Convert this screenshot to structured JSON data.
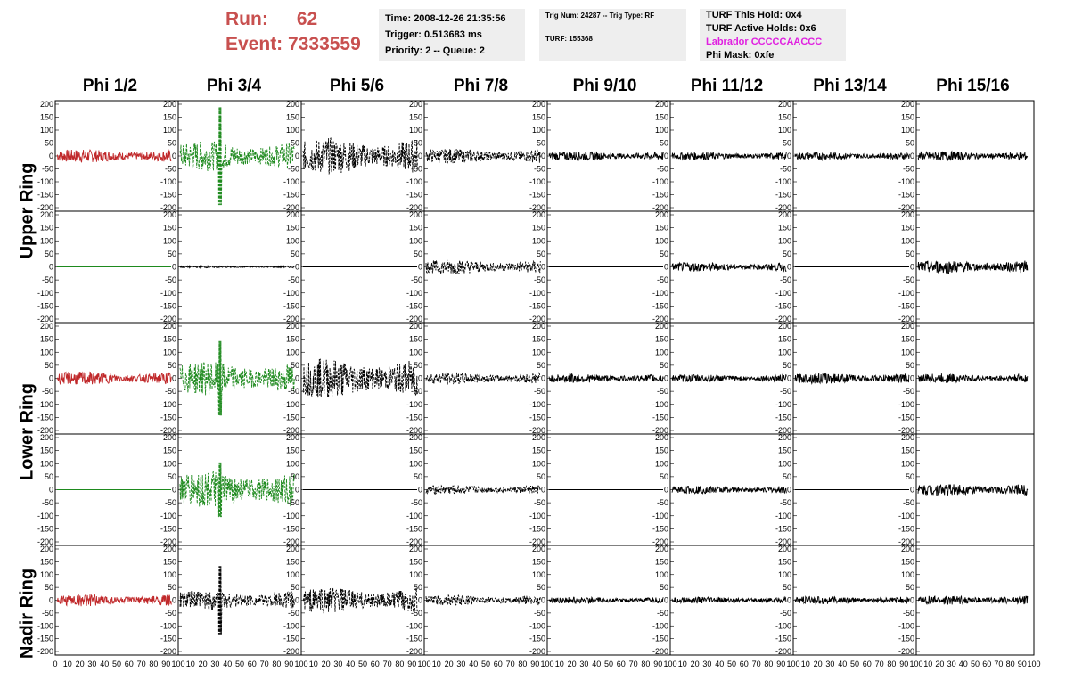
{
  "run_label": "Run:",
  "run_value": "62",
  "event_label": "Event:",
  "event_value": "7333559",
  "info1": {
    "time": "Time: 2008-12-26 21:35:56",
    "trigger": "Trigger: 0.513683 ms",
    "priority": "Priority: 2 -- Queue: 2"
  },
  "info2": {
    "trig": "Trig Num: 24287 -- Trig Type: RF",
    "turf": "TURF: 155368"
  },
  "info3": {
    "this_hold": "TURF This Hold: 0x4",
    "active_holds": "TURF Active Holds: 0x6",
    "labrador": "Labrador CCCCCAACCC",
    "phi_mask": "Phi Mask: 0xfe"
  },
  "columns": [
    "Phi 1/2",
    "Phi 3/4",
    "Phi 5/6",
    "Phi 7/8",
    "Phi 9/10",
    "Phi 11/12",
    "Phi 13/14",
    "Phi 15/16"
  ],
  "rows": [
    "Upper Ring",
    "Lower Ring",
    "Nadir Ring"
  ],
  "colors": {
    "red": "#c0282a",
    "green": "#1e8a1e",
    "black": "#000000",
    "run_text": "#c8504f",
    "labrador": "#e020e0"
  },
  "y_ticks": [
    "200",
    "150",
    "100",
    "50",
    "0",
    "-50",
    "-100",
    "-150",
    "-200"
  ],
  "x_ticks_first": [
    "0",
    "10",
    "20",
    "30",
    "40",
    "50",
    "60",
    "70",
    "80",
    "90",
    "100"
  ],
  "x_ticks": [
    "10",
    "20",
    "30",
    "40",
    "50",
    "60",
    "70",
    "80",
    "90",
    "100"
  ],
  "panels": [
    [
      {
        "color": "red",
        "amp": 20,
        "flat": false
      },
      {
        "color": "green",
        "amp": 45,
        "flat": false,
        "dash": true,
        "spike": 200
      },
      {
        "color": "black",
        "amp": 55,
        "flat": false,
        "dash": true
      },
      {
        "color": "black",
        "amp": 22,
        "flat": false,
        "dash": true
      },
      {
        "color": "black",
        "amp": 14,
        "flat": false
      },
      {
        "color": "black",
        "amp": 12,
        "flat": false
      },
      {
        "color": "black",
        "amp": 12,
        "flat": false
      },
      {
        "color": "black",
        "amp": 14,
        "flat": false
      }
    ],
    [
      {
        "color": "green",
        "amp": 0,
        "flat": true
      },
      {
        "color": "black",
        "amp": 3,
        "flat": false
      },
      {
        "color": "black",
        "amp": 0,
        "flat": true
      },
      {
        "color": "black",
        "amp": 22,
        "flat": false,
        "dash": true
      },
      {
        "color": "black",
        "amp": 0,
        "flat": true
      },
      {
        "color": "black",
        "amp": 14,
        "flat": false
      },
      {
        "color": "black",
        "amp": 0,
        "flat": true
      },
      {
        "color": "black",
        "amp": 20,
        "flat": false
      }
    ],
    [
      {
        "color": "red",
        "amp": 20,
        "flat": false
      },
      {
        "color": "green",
        "amp": 50,
        "flat": false,
        "dash": true,
        "spike": 150
      },
      {
        "color": "black",
        "amp": 60,
        "flat": false,
        "dash": true
      },
      {
        "color": "black",
        "amp": 18,
        "flat": false,
        "dash": true
      },
      {
        "color": "black",
        "amp": 14,
        "flat": false
      },
      {
        "color": "black",
        "amp": 12,
        "flat": false
      },
      {
        "color": "black",
        "amp": 16,
        "flat": false
      },
      {
        "color": "black",
        "amp": 14,
        "flat": false
      }
    ],
    [
      {
        "color": "green",
        "amp": 0,
        "flat": true
      },
      {
        "color": "green",
        "amp": 55,
        "flat": false,
        "dash": true,
        "spike": 110
      },
      {
        "color": "black",
        "amp": 0,
        "flat": true
      },
      {
        "color": "black",
        "amp": 14,
        "flat": false,
        "dash": true
      },
      {
        "color": "black",
        "amp": 0,
        "flat": true
      },
      {
        "color": "black",
        "amp": 12,
        "flat": false
      },
      {
        "color": "black",
        "amp": 0,
        "flat": true
      },
      {
        "color": "black",
        "amp": 18,
        "flat": false
      }
    ],
    [
      {
        "color": "red",
        "amp": 18,
        "flat": false
      },
      {
        "color": "black",
        "amp": 30,
        "flat": false,
        "dash": true,
        "spike": 140
      },
      {
        "color": "black",
        "amp": 40,
        "flat": false,
        "dash": true
      },
      {
        "color": "black",
        "amp": 16,
        "flat": false,
        "dash": true
      },
      {
        "color": "black",
        "amp": 10,
        "flat": false
      },
      {
        "color": "black",
        "amp": 10,
        "flat": false
      },
      {
        "color": "black",
        "amp": 12,
        "flat": false
      },
      {
        "color": "black",
        "amp": 14,
        "flat": false
      }
    ]
  ]
}
